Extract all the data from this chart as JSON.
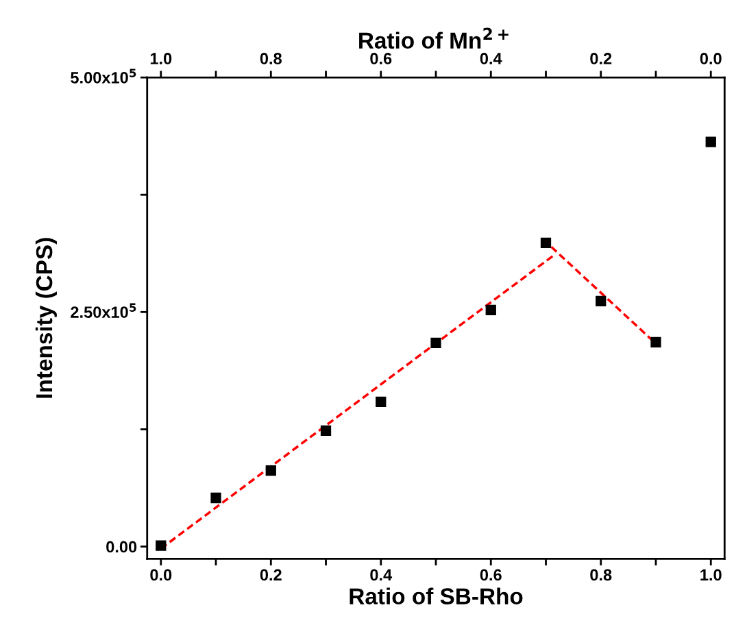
{
  "chart_data": {
    "type": "scatter",
    "xlabel": "Ratio of SB-Rho",
    "ylabel": "Intensity (CPS)",
    "x2label": "Ratio of Mn$^{2+}$",
    "marker": "square",
    "grid": false,
    "xlim": [
      -0.025,
      1.025
    ],
    "x2lim": [
      1.025,
      -0.025
    ],
    "ylim": [
      -13000,
      500000
    ],
    "xticks": [
      {
        "value": 0.0,
        "label": "0.0"
      },
      {
        "value": 0.1,
        "label": null
      },
      {
        "value": 0.2,
        "label": "0.2"
      },
      {
        "value": 0.3,
        "label": null
      },
      {
        "value": 0.4,
        "label": "0.4"
      },
      {
        "value": 0.5,
        "label": null
      },
      {
        "value": 0.6,
        "label": "0.6"
      },
      {
        "value": 0.7,
        "label": null
      },
      {
        "value": 0.8,
        "label": "0.8"
      },
      {
        "value": 0.9,
        "label": null
      },
      {
        "value": 1.0,
        "label": "1.0"
      }
    ],
    "x2ticks": [
      {
        "value": 1.0,
        "label": "1.0"
      },
      {
        "value": 0.9,
        "label": null
      },
      {
        "value": 0.8,
        "label": "0.8"
      },
      {
        "value": 0.7,
        "label": null
      },
      {
        "value": 0.6,
        "label": "0.6"
      },
      {
        "value": 0.5,
        "label": null
      },
      {
        "value": 0.4,
        "label": "0.4"
      },
      {
        "value": 0.3,
        "label": null
      },
      {
        "value": 0.2,
        "label": "0.2"
      },
      {
        "value": 0.1,
        "label": null
      },
      {
        "value": 0.0,
        "label": "0.0"
      }
    ],
    "yticks": [
      {
        "value": 0,
        "label": "0.00"
      },
      {
        "value": 125000,
        "label": null
      },
      {
        "value": 250000,
        "label": "2.50x10$^{5}$"
      },
      {
        "value": 375000,
        "label": null
      },
      {
        "value": 500000,
        "label": "5.00x10$^{5}$"
      }
    ],
    "series": [
      {
        "color": "#000000",
        "x": [
          0.0,
          0.1,
          0.2,
          0.3,
          0.4,
          0.5,
          0.6,
          0.7,
          0.8,
          0.9,
          1.0
        ],
        "values": [
          1000,
          51900,
          81100,
          123500,
          154200,
          217100,
          252200,
          323800,
          261700,
          217800,
          431300
        ]
      },
      {
        "type": "line",
        "color": "#ff0000",
        "line_style": "dashed",
        "marker": "none",
        "x": [
          0.0,
          0.715
        ],
        "values": [
          -2200,
          310700
        ]
      },
      {
        "type": "line",
        "color": "#ff0000",
        "line_style": "dashed",
        "marker": "none",
        "x": [
          0.71,
          0.9
        ],
        "values": [
          319400,
          216400
        ]
      }
    ]
  }
}
